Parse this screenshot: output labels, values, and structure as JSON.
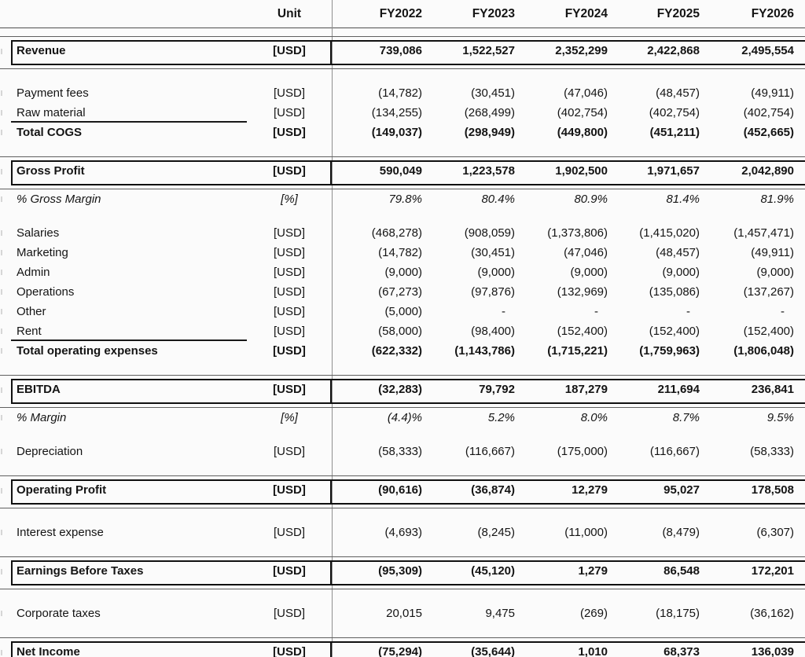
{
  "header": {
    "unit_label": "Unit",
    "years": [
      "FY2022",
      "FY2023",
      "FY2024",
      "FY2025",
      "FY2026"
    ],
    "clipped_years": [
      "2022",
      "2023",
      "2024",
      "2025",
      "2026"
    ]
  },
  "colors": {
    "text": "#141414",
    "box_border": "#101010",
    "divider": "#8f8f8f",
    "muted_year": "#9c9c9c"
  },
  "rows": [
    {
      "type": "row",
      "style": "boxed",
      "label": "Revenue",
      "unit": "[USD]",
      "values": [
        "739,086",
        "1,522,527",
        "2,352,299",
        "2,422,868",
        "2,495,554"
      ]
    },
    {
      "type": "spacer"
    },
    {
      "type": "row",
      "style": "normal",
      "label": "Payment fees",
      "unit": "[USD]",
      "values": [
        "(14,782)",
        "(30,451)",
        "(47,046)",
        "(48,457)",
        "(49,911)"
      ]
    },
    {
      "type": "row",
      "style": "normal",
      "rule_below": true,
      "label": "Raw material",
      "unit": "[USD]",
      "values": [
        "(134,255)",
        "(268,499)",
        "(402,754)",
        "(402,754)",
        "(402,754)"
      ]
    },
    {
      "type": "row",
      "style": "bold",
      "label": "Total COGS",
      "unit": "[USD]",
      "values": [
        "(149,037)",
        "(298,949)",
        "(449,800)",
        "(451,211)",
        "(452,665)"
      ]
    },
    {
      "type": "spacer"
    },
    {
      "type": "row",
      "style": "boxed",
      "label": "Gross Profit",
      "unit": "[USD]",
      "values": [
        "590,049",
        "1,223,578",
        "1,902,500",
        "1,971,657",
        "2,042,890"
      ]
    },
    {
      "type": "row",
      "style": "italic",
      "label": "% Gross Margin",
      "unit": "[%]",
      "values": [
        "79.8%",
        "80.4%",
        "80.9%",
        "81.4%",
        "81.9%"
      ]
    },
    {
      "type": "spacer"
    },
    {
      "type": "row",
      "style": "normal",
      "label": "Salaries",
      "unit": "[USD]",
      "values": [
        "(468,278)",
        "(908,059)",
        "(1,373,806)",
        "(1,415,020)",
        "(1,457,471)"
      ]
    },
    {
      "type": "row",
      "style": "normal",
      "label": "Marketing",
      "unit": "[USD]",
      "values": [
        "(14,782)",
        "(30,451)",
        "(47,046)",
        "(48,457)",
        "(49,911)"
      ]
    },
    {
      "type": "row",
      "style": "normal",
      "label": "Admin",
      "unit": "[USD]",
      "values": [
        "(9,000)",
        "(9,000)",
        "(9,000)",
        "(9,000)",
        "(9,000)"
      ]
    },
    {
      "type": "row",
      "style": "normal",
      "label": "Operations",
      "unit": "[USD]",
      "values": [
        "(67,273)",
        "(97,876)",
        "(132,969)",
        "(135,086)",
        "(137,267)"
      ]
    },
    {
      "type": "row",
      "style": "normal",
      "label": "Other",
      "unit": "[USD]",
      "values": [
        "(5,000)",
        "-",
        "-",
        "-",
        "-"
      ]
    },
    {
      "type": "row",
      "style": "normal",
      "rule_below": true,
      "label": "Rent",
      "unit": "[USD]",
      "values": [
        "(58,000)",
        "(98,400)",
        "(152,400)",
        "(152,400)",
        "(152,400)"
      ]
    },
    {
      "type": "row",
      "style": "bold",
      "label": "Total operating expenses",
      "unit": "[USD]",
      "values": [
        "(622,332)",
        "(1,143,786)",
        "(1,715,221)",
        "(1,759,963)",
        "(1,806,048)"
      ]
    },
    {
      "type": "spacer"
    },
    {
      "type": "row",
      "style": "boxed",
      "label": "EBITDA",
      "unit": "[USD]",
      "values": [
        "(32,283)",
        "79,792",
        "187,279",
        "211,694",
        "236,841"
      ]
    },
    {
      "type": "row",
      "style": "italic",
      "label": "% Margin",
      "unit": "[%]",
      "values": [
        "(4.4)%",
        "5.2%",
        "8.0%",
        "8.7%",
        "9.5%"
      ]
    },
    {
      "type": "spacer"
    },
    {
      "type": "row",
      "style": "normal",
      "label": "Depreciation",
      "unit": "[USD]",
      "values": [
        "(58,333)",
        "(116,667)",
        "(175,000)",
        "(116,667)",
        "(58,333)"
      ]
    },
    {
      "type": "spacer"
    },
    {
      "type": "row",
      "style": "boxed",
      "label": "Operating Profit",
      "unit": "[USD]",
      "values": [
        "(90,616)",
        "(36,874)",
        "12,279",
        "95,027",
        "178,508"
      ]
    },
    {
      "type": "spacer"
    },
    {
      "type": "row",
      "style": "normal",
      "label": "Interest expense",
      "unit": "[USD]",
      "values": [
        "(4,693)",
        "(8,245)",
        "(11,000)",
        "(8,479)",
        "(6,307)"
      ]
    },
    {
      "type": "spacer"
    },
    {
      "type": "row",
      "style": "boxed",
      "label": "Earnings Before Taxes",
      "unit": "[USD]",
      "values": [
        "(95,309)",
        "(45,120)",
        "1,279",
        "86,548",
        "172,201"
      ]
    },
    {
      "type": "spacer"
    },
    {
      "type": "row",
      "style": "normal",
      "label": "Corporate taxes",
      "unit": "[USD]",
      "values": [
        "20,015",
        "9,475",
        "(269)",
        "(18,175)",
        "(36,162)"
      ]
    },
    {
      "type": "spacer"
    },
    {
      "type": "row",
      "style": "boxed",
      "label": "Net Income",
      "unit": "[USD]",
      "values": [
        "(75,294)",
        "(35,644)",
        "1,010",
        "68,373",
        "136,039"
      ]
    }
  ]
}
